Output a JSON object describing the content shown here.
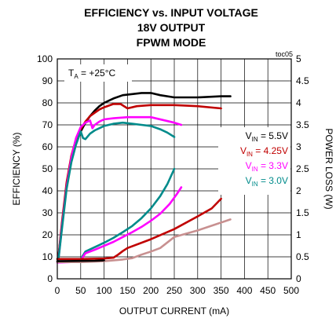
{
  "chart_data": {
    "type": "line",
    "title_lines": [
      "EFFICIENCY vs. INPUT VOLTAGE",
      "18V OUTPUT",
      "FPWM MODE"
    ],
    "figure_id": "toc05",
    "xlabel": "OUTPUT CURRENT (mA)",
    "ylabel": "EFFICIENCY (%)",
    "y2label": "POWER LOSS (W)",
    "xlim": [
      0,
      500
    ],
    "ylim": [
      0,
      100
    ],
    "y2lim": [
      0,
      5
    ],
    "xticks": [
      "0",
      "50",
      "100",
      "150",
      "200",
      "250",
      "300",
      "350",
      "400",
      "450",
      "500"
    ],
    "yticks": [
      "0",
      "10",
      "20",
      "30",
      "40",
      "50",
      "60",
      "70",
      "80",
      "90",
      "100"
    ],
    "y2ticks": [
      "0",
      "0.5",
      "1",
      "1.5",
      "2",
      "2.5",
      "3",
      "3.5",
      "4",
      "4.5",
      "5"
    ],
    "grid": true,
    "annotation": {
      "main": "T",
      "sub": "A",
      "rest": " = +25°C"
    },
    "legend_placement": "right",
    "colors": {
      "vin_5v5": "#000000",
      "vin_4v25": "#c00000",
      "vin_3v3": "#ff00ff",
      "vin_3v0": "#008b8b",
      "loss_extra": "#c89090"
    },
    "series": [
      {
        "legend_prefix": "V",
        "legend_sub": "IN",
        "legend_value": " = 5.5V",
        "color": "#000000",
        "axis": "efficiency",
        "x": [
          2,
          10,
          20,
          30,
          40,
          50,
          60,
          70,
          80,
          90,
          100,
          120,
          140,
          160,
          180,
          200,
          220,
          250,
          300,
          350,
          370
        ],
        "y": [
          9,
          25,
          42,
          54,
          62,
          67,
          71,
          74,
          76.5,
          78.5,
          80,
          82,
          83.5,
          84,
          84.5,
          84.5,
          83.5,
          82.5,
          82.5,
          83,
          83
        ]
      },
      {
        "legend_prefix": "V",
        "legend_sub": "IN",
        "legend_value": " = 4.25V",
        "color": "#c00000",
        "axis": "efficiency",
        "x": [
          2,
          10,
          20,
          30,
          40,
          50,
          60,
          70,
          80,
          90,
          100,
          120,
          135,
          150,
          170,
          200,
          250,
          300,
          350
        ],
        "y": [
          9,
          26,
          44,
          56,
          63.5,
          68,
          71.5,
          74,
          75.5,
          77,
          78,
          79.5,
          79.5,
          77.5,
          78.5,
          79,
          79,
          78.5,
          77.5
        ]
      },
      {
        "legend_prefix": "V",
        "legend_sub": "IN",
        "legend_value": " = 3.3V",
        "color": "#ff00ff",
        "axis": "efficiency",
        "x": [
          2,
          10,
          20,
          30,
          40,
          50,
          60,
          70,
          75,
          80,
          90,
          100,
          120,
          150,
          200,
          250,
          265
        ],
        "y": [
          8,
          24,
          42,
          55,
          64,
          69,
          71,
          72,
          68.5,
          70,
          71.5,
          72.5,
          73,
          73.5,
          73.5,
          71,
          70
        ]
      },
      {
        "legend_prefix": "V",
        "legend_sub": "IN",
        "legend_value": " = 3.0V",
        "color": "#008b8b",
        "axis": "efficiency",
        "x": [
          2,
          10,
          20,
          30,
          40,
          50,
          55,
          60,
          70,
          80,
          100,
          120,
          140,
          160,
          180,
          200,
          220,
          235,
          250
        ],
        "y": [
          8,
          23,
          41,
          53,
          61,
          67,
          64,
          63.5,
          66,
          67.5,
          69.5,
          70.5,
          71,
          70.5,
          70,
          69.5,
          68,
          66.5,
          64.5
        ]
      },
      {
        "color": "#008b8b",
        "axis": "power_loss",
        "x": [
          0,
          30,
          50,
          60,
          80,
          100,
          120,
          140,
          160,
          180,
          200,
          220,
          235,
          250
        ],
        "y": [
          0.45,
          0.45,
          0.45,
          0.62,
          0.72,
          0.82,
          0.93,
          1.06,
          1.2,
          1.38,
          1.6,
          1.88,
          2.15,
          2.5
        ]
      },
      {
        "color": "#ff00ff",
        "axis": "power_loss",
        "x": [
          0,
          30,
          50,
          60,
          80,
          100,
          120,
          140,
          160,
          180,
          200,
          220,
          240,
          255,
          265
        ],
        "y": [
          0.37,
          0.38,
          0.42,
          0.58,
          0.66,
          0.75,
          0.84,
          0.95,
          1.06,
          1.18,
          1.32,
          1.48,
          1.7,
          1.92,
          2.08
        ]
      },
      {
        "color": "#c00000",
        "axis": "power_loss",
        "x": [
          0,
          50,
          100,
          120,
          130,
          140,
          150,
          200,
          250,
          300,
          330,
          350
        ],
        "y": [
          0.45,
          0.45,
          0.46,
          0.48,
          0.55,
          0.63,
          0.7,
          0.9,
          1.13,
          1.42,
          1.6,
          1.82
        ]
      },
      {
        "color": "#c89090",
        "axis": "power_loss",
        "x": [
          0,
          50,
          100,
          140,
          160,
          180,
          200,
          220,
          250,
          300,
          370
        ],
        "y": [
          0.38,
          0.38,
          0.4,
          0.44,
          0.47,
          0.55,
          0.62,
          0.7,
          0.95,
          1.1,
          1.35
        ]
      },
      {
        "color": "#000000",
        "axis": "power_loss",
        "x": [
          0,
          80,
          100
        ],
        "y": [
          0.4,
          0.41,
          0.42
        ]
      }
    ]
  }
}
